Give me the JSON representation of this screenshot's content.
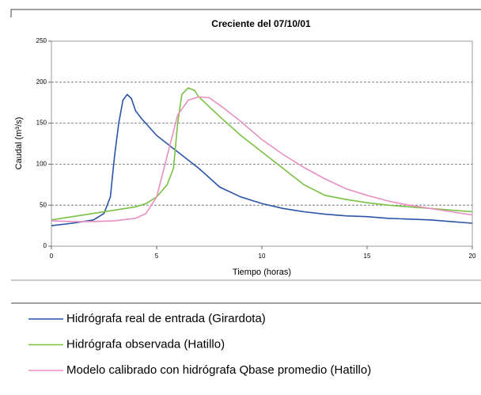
{
  "chart_data": {
    "type": "line",
    "title": "Creciente del 07/10/01",
    "x_label": "Tiempo (horas)",
    "y_label": "Caudal (m³/s)",
    "xlim": [
      0,
      20
    ],
    "xticks": [
      0,
      5,
      10,
      15,
      20
    ],
    "ylim": [
      0,
      250
    ],
    "yticks": [
      0,
      50,
      100,
      150,
      200,
      250
    ],
    "grid": true,
    "series": [
      {
        "name": "Hidrógrafa real de entrada (Girardota)",
        "color": "#2a54a8",
        "x": [
          0,
          1,
          2,
          2.5,
          2.8,
          3,
          3.2,
          3.4,
          3.6,
          3.8,
          4,
          4.3,
          5,
          6,
          7,
          8,
          9,
          10,
          11,
          12,
          13,
          14,
          15,
          16,
          17,
          18,
          19,
          20
        ],
        "values": [
          25,
          28,
          32,
          40,
          60,
          110,
          150,
          178,
          185,
          180,
          165,
          155,
          135,
          115,
          95,
          72,
          60,
          52,
          46,
          42,
          39,
          37,
          36,
          34,
          33,
          32,
          30,
          28
        ]
      },
      {
        "name": "Hidrógrafa observada (Hatillo)",
        "color": "#7ac143",
        "x": [
          0,
          1,
          2,
          3,
          4,
          4.5,
          5,
          5.5,
          5.8,
          6,
          6.2,
          6.5,
          6.8,
          7,
          8,
          9,
          10,
          11,
          12,
          13,
          14,
          15,
          16,
          17,
          18,
          19,
          20
        ],
        "values": [
          32,
          36,
          40,
          44,
          48,
          52,
          60,
          75,
          95,
          150,
          185,
          193,
          190,
          182,
          158,
          135,
          115,
          95,
          75,
          62,
          57,
          53,
          50,
          48,
          46,
          44,
          42
        ]
      },
      {
        "name": "Modelo calibrado con hidrógrafa Qbase promedio (Hatillo)",
        "color": "#e98fc0",
        "x": [
          0,
          1,
          2,
          3,
          4,
          4.5,
          5,
          5.5,
          6,
          6.5,
          7,
          7.5,
          8,
          9,
          10,
          11,
          12,
          13,
          14,
          15,
          16,
          17,
          18,
          19,
          20
        ],
        "values": [
          31,
          30,
          30,
          31,
          34,
          40,
          60,
          110,
          160,
          178,
          182,
          181,
          172,
          152,
          130,
          112,
          96,
          82,
          70,
          62,
          55,
          50,
          46,
          42,
          38
        ]
      }
    ]
  }
}
